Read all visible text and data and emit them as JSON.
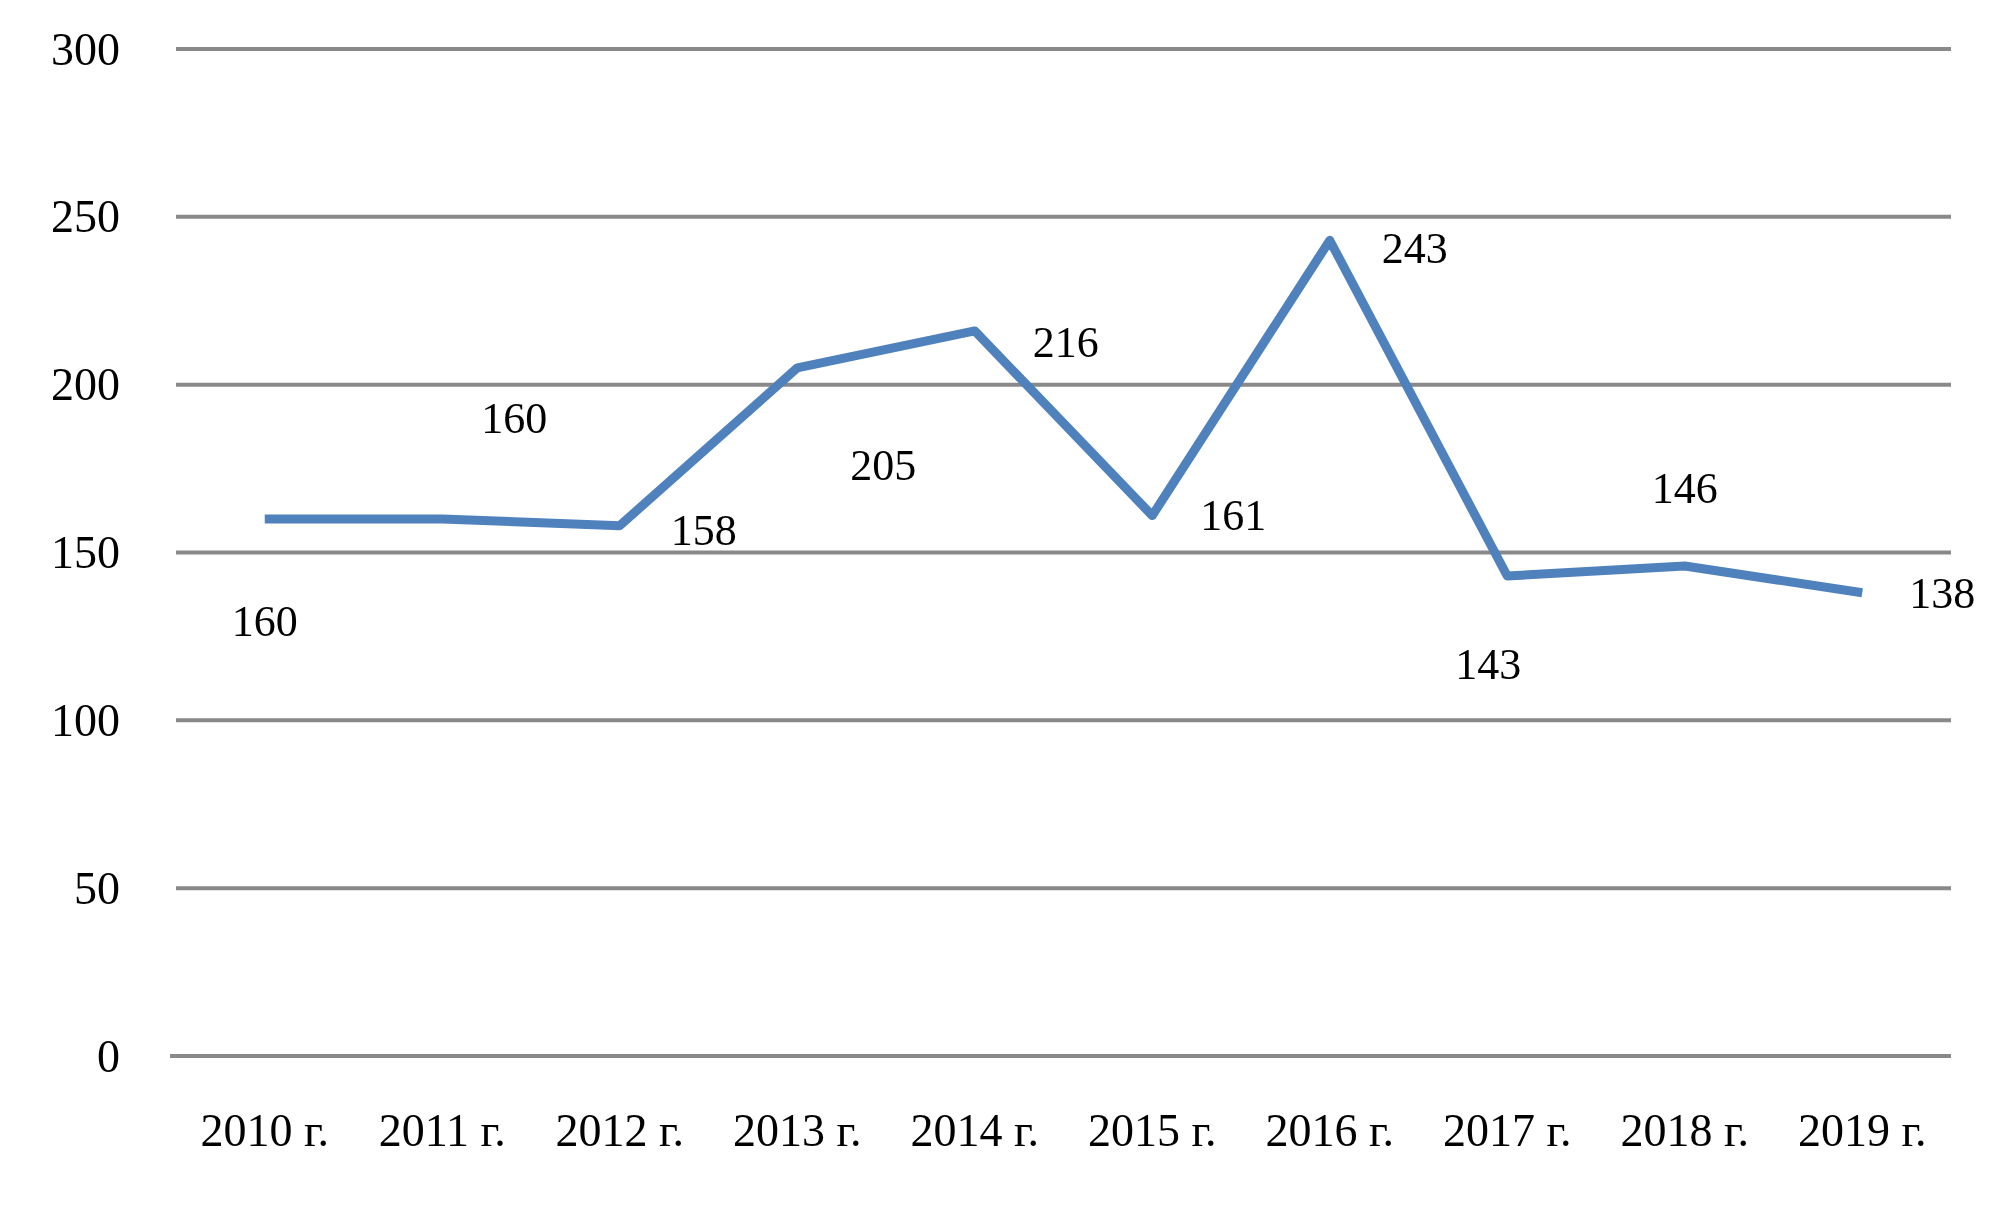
{
  "chart_data": {
    "type": "line",
    "categories": [
      "2010 г.",
      "2011 г.",
      "2012 г.",
      "2013 г.",
      "2014 г.",
      "2015 г.",
      "2016 г.",
      "2017 г.",
      "2018 г.",
      "2019 г."
    ],
    "series": [
      {
        "color": "#4f81bd",
        "values": [
          160,
          160,
          158,
          205,
          216,
          161,
          243,
          143,
          146,
          138
        ]
      }
    ],
    "ylim": [
      0,
      300
    ],
    "yticks": [
      0,
      50,
      100,
      150,
      200,
      250,
      300
    ],
    "grid": "y",
    "data_labels": true,
    "marker": "none",
    "line_style": "solid"
  }
}
